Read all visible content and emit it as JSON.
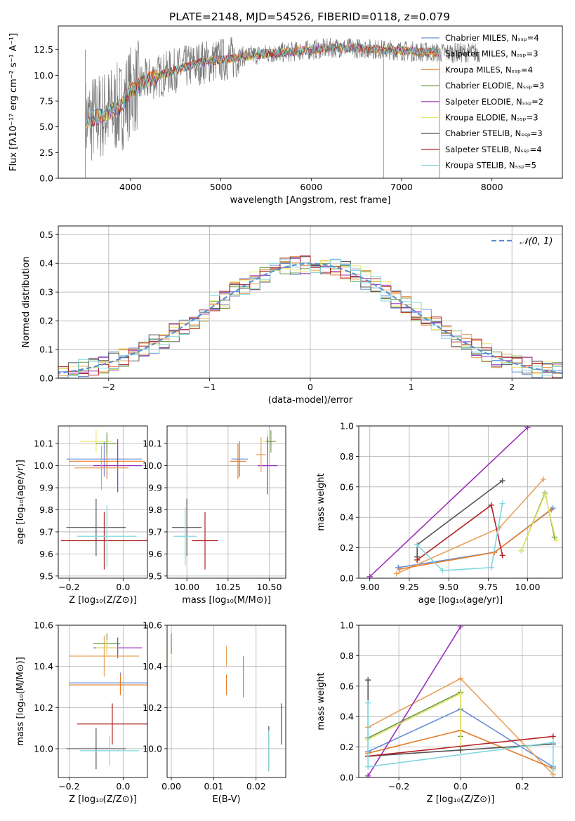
{
  "figure_title": "PLATE=2148, MJD=54526, FIBERID=0118, z=0.079",
  "series_styles": [
    {
      "name": "Chabrier MILES",
      "nssp": "4",
      "color": "#6a8fd8"
    },
    {
      "name": "Salpeter MILES",
      "nssp": "3",
      "color": "#e8a15a"
    },
    {
      "name": "Kroupa MILES",
      "nssp": "4",
      "color": "#e57d2a"
    },
    {
      "name": "Chabrier ELODIE",
      "nssp": "3",
      "color": "#6a9a4a"
    },
    {
      "name": "Salpeter ELODIE",
      "nssp": "2",
      "color": "#9b30b8"
    },
    {
      "name": "Kroupa ELODIE",
      "nssp": "3",
      "color": "#e8e86a"
    },
    {
      "name": "Chabrier STELIB",
      "nssp": "3",
      "color": "#555555"
    },
    {
      "name": "Salpeter STELIB",
      "nssp": "4",
      "color": "#b22222"
    },
    {
      "name": "Kroupa STELIB",
      "nssp": "5",
      "color": "#7fd8e0"
    }
  ],
  "chart_data": [
    {
      "id": "spectrum",
      "type": "line",
      "xlabel": "wavelength [Angstrom, rest frame]",
      "ylabel": "Flux [fλ10⁻¹⁷ erg cm⁻² s⁻¹ A⁻¹]",
      "xlim": [
        3200,
        8780
      ],
      "ylim": [
        0,
        14.8
      ],
      "xticks": [
        "4000",
        "5000",
        "6000",
        "7000",
        "8000"
      ],
      "yticks": [
        "0.0",
        "2.5",
        "5.0",
        "7.5",
        "10.0",
        "12.5"
      ],
      "legend": "right",
      "legend_labels": [
        "Chabrier MILES, Nₛₛₚ=4",
        "Salpeter MILES, Nₛₛₚ=3",
        "Kroupa MILES, Nₛₛₚ=4",
        "Chabrier ELODIE, Nₛₛₚ=3",
        "Salpeter ELODIE, Nₛₛₚ=2",
        "Kroupa ELODIE, Nₛₛₚ=3",
        "Chabrier STELIB, Nₛₛₚ=3",
        "Salpeter STELIB, Nₛₛₚ=4",
        "Kroupa STELIB, Nₛₛₚ=5"
      ],
      "continuum": {
        "x": [
          3500,
          3700,
          3900,
          4000,
          4200,
          4500,
          4800,
          5000,
          5200,
          5500,
          5800,
          6000,
          6300,
          6600,
          7000,
          7400
        ],
        "y": [
          5.5,
          6.2,
          7.0,
          8.5,
          9.6,
          10.5,
          11.3,
          11.5,
          11.8,
          12.1,
          12.3,
          12.5,
          12.7,
          12.6,
          12.4,
          12.2
        ]
      },
      "data_range": [
        3500,
        7420
      ]
    },
    {
      "id": "residuals",
      "type": "bar",
      "xlabel": "(data-model)/error",
      "ylabel": "Normed distribution",
      "xlim": [
        -2.5,
        2.5
      ],
      "ylim": [
        0,
        0.53
      ],
      "xticks": [
        "−2",
        "−1",
        "0",
        "1",
        "2"
      ],
      "yticks": [
        "0.0",
        "0.1",
        "0.2",
        "0.3",
        "0.4",
        "0.5"
      ],
      "legend": "top-right",
      "reference_curve": {
        "name": "𝒩(0, 1)",
        "mean": 0,
        "sigma": 1
      }
    },
    {
      "id": "age_vs_Z",
      "type": "scatter",
      "xlabel": "Z [log₁₀(Z/Z⊙)]",
      "ylabel": "age  [log₁₀(age/yr)]",
      "xlim": [
        -0.24,
        0.09
      ],
      "ylim": [
        9.49,
        10.18
      ],
      "xticks": [
        "−0.2",
        "0.0"
      ],
      "yticks": [
        "9.5",
        "9.6",
        "9.7",
        "9.8",
        "9.9",
        "10.0",
        "10.1"
      ],
      "points": [
        {
          "x": -0.07,
          "y": 10.03,
          "xerr": 0.14,
          "yerr": 0.08,
          "c": 0
        },
        {
          "x": -0.06,
          "y": 10.02,
          "xerr": 0.14,
          "yerr": 0.08,
          "c": 2
        },
        {
          "x": -0.1,
          "y": 10.11,
          "xerr": 0.06,
          "yerr": 0.05,
          "c": 5
        },
        {
          "x": -0.02,
          "y": 10.0,
          "xerr": 0.09,
          "yerr": 0.12,
          "c": 4
        },
        {
          "x": -0.08,
          "y": 9.99,
          "xerr": 0.1,
          "yerr": 0.1,
          "c": 1
        },
        {
          "x": -0.06,
          "y": 10.1,
          "xerr": 0.04,
          "yerr": 0.05,
          "c": 3
        },
        {
          "x": -0.1,
          "y": 9.72,
          "xerr": 0.11,
          "yerr": 0.13,
          "c": 6
        },
        {
          "x": -0.07,
          "y": 9.66,
          "xerr": 0.16,
          "yerr": 0.13,
          "c": 7
        },
        {
          "x": -0.06,
          "y": 9.68,
          "xerr": 0.11,
          "yerr": 0.14,
          "c": 8
        }
      ]
    },
    {
      "id": "age_vs_mass",
      "type": "scatter",
      "xlabel": "mass [log₁₀(M/M⊙)]",
      "ylabel": "",
      "xlim": [
        9.88,
        10.6
      ],
      "ylim": [
        9.49,
        10.18
      ],
      "xticks": [
        "10.00",
        "10.25",
        "10.50"
      ],
      "yticks": [
        "9.5",
        "9.6",
        "9.7",
        "9.8",
        "9.9",
        "10.0",
        "10.1"
      ],
      "points": [
        {
          "x": 10.32,
          "y": 10.03,
          "xerr": 0.05,
          "yerr": 0.08,
          "c": 0
        },
        {
          "x": 10.31,
          "y": 10.02,
          "xerr": 0.05,
          "yerr": 0.08,
          "c": 2
        },
        {
          "x": 10.49,
          "y": 10.11,
          "xerr": 0.03,
          "yerr": 0.05,
          "c": 5
        },
        {
          "x": 10.49,
          "y": 10.0,
          "xerr": 0.06,
          "yerr": 0.13,
          "c": 4
        },
        {
          "x": 10.45,
          "y": 10.05,
          "xerr": 0.03,
          "yerr": 0.08,
          "c": 1
        },
        {
          "x": 10.51,
          "y": 10.11,
          "xerr": 0.03,
          "yerr": 0.05,
          "c": 3
        },
        {
          "x": 10.0,
          "y": 9.72,
          "xerr": 0.09,
          "yerr": 0.13,
          "c": 6
        },
        {
          "x": 10.11,
          "y": 9.66,
          "xerr": 0.08,
          "yerr": 0.13,
          "c": 7
        },
        {
          "x": 9.99,
          "y": 9.68,
          "xerr": 0.07,
          "yerr": 0.13,
          "c": 8
        }
      ]
    },
    {
      "id": "massweight_vs_age",
      "type": "line",
      "xlabel": "age  [log₁₀(age/yr)]",
      "ylabel": "mass weight",
      "xlim": [
        8.93,
        10.22
      ],
      "ylim": [
        0,
        1.0
      ],
      "xticks": [
        "9.00",
        "9.25",
        "9.50",
        "9.75",
        "10.00"
      ],
      "yticks": [
        "0.0",
        "0.2",
        "0.4",
        "0.6",
        "0.8",
        "1.0"
      ],
      "series": [
        {
          "c": 0,
          "x": [
            9.18,
            9.79,
            10.16
          ],
          "y": [
            0.07,
            0.17,
            0.46
          ]
        },
        {
          "c": 1,
          "x": [
            9.17,
            9.82,
            10.1
          ],
          "y": [
            0.03,
            0.33,
            0.65
          ]
        },
        {
          "c": 2,
          "x": [
            9.19,
            9.79,
            10.15
          ],
          "y": [
            0.06,
            0.17,
            0.45
          ]
        },
        {
          "c": 3,
          "x": [
            9.96,
            10.11,
            10.17
          ],
          "y": [
            0.18,
            0.56,
            0.27
          ]
        },
        {
          "c": 4,
          "x": [
            9.0,
            10.0
          ],
          "y": [
            0.01,
            0.99
          ]
        },
        {
          "c": 5,
          "x": [
            9.96,
            10.11,
            10.18
          ],
          "y": [
            0.18,
            0.55,
            0.25
          ]
        },
        {
          "c": 6,
          "x": [
            9.3,
            9.3,
            9.84
          ],
          "y": [
            0.14,
            0.22,
            0.64
          ]
        },
        {
          "c": 7,
          "x": [
            9.3,
            9.77,
            9.84
          ],
          "y": [
            0.12,
            0.48,
            0.15
          ]
        },
        {
          "c": 8,
          "x": [
            9.3,
            9.46,
            9.77,
            9.84
          ],
          "y": [
            0.22,
            0.05,
            0.07,
            0.49
          ]
        }
      ]
    },
    {
      "id": "mass_vs_Z",
      "type": "scatter",
      "xlabel": "Z [log₁₀(Z/Z⊙)]",
      "ylabel": "mass [log₁₀(M/M⊙)]",
      "xlim": [
        -0.24,
        0.09
      ],
      "ylim": [
        9.86,
        10.6
      ],
      "xticks": [
        "−0.2",
        "0.0"
      ],
      "yticks": [
        "10.0",
        "10.2",
        "10.4",
        "10.6"
      ],
      "points": [
        {
          "x": -0.01,
          "y": 10.32,
          "xerr": 0.19,
          "yerr": 0.05,
          "c": 0
        },
        {
          "x": -0.01,
          "y": 10.31,
          "xerr": 0.19,
          "yerr": 0.05,
          "c": 2
        },
        {
          "x": -0.06,
          "y": 10.51,
          "xerr": 0.05,
          "yerr": 0.05,
          "c": 3
        },
        {
          "x": -0.02,
          "y": 10.49,
          "xerr": 0.09,
          "yerr": 0.05,
          "c": 4
        },
        {
          "x": -0.07,
          "y": 10.45,
          "xerr": 0.13,
          "yerr": 0.1,
          "c": 1
        },
        {
          "x": -0.06,
          "y": 10.49,
          "xerr": 0.04,
          "yerr": 0.04,
          "c": 5
        },
        {
          "x": -0.1,
          "y": 10.0,
          "xerr": 0.11,
          "yerr": 0.1,
          "c": 6
        },
        {
          "x": -0.04,
          "y": 10.12,
          "xerr": 0.13,
          "yerr": 0.1,
          "c": 7
        },
        {
          "x": -0.05,
          "y": 9.99,
          "xerr": 0.11,
          "yerr": 0.07,
          "c": 8
        }
      ]
    },
    {
      "id": "mass_vs_ebv",
      "type": "scatter",
      "xlabel": "E(B-V)",
      "ylabel": "",
      "xlim": [
        -0.001,
        0.027
      ],
      "ylim": [
        9.86,
        10.6
      ],
      "xticks": [
        "0.00",
        "0.01",
        "0.02"
      ],
      "yticks": [
        "10.0",
        "10.2",
        "10.4",
        "10.6"
      ],
      "points": [
        {
          "x": 0.017,
          "y": 10.35,
          "yerr": 0.1,
          "c": 0
        },
        {
          "x": 0.013,
          "y": 10.31,
          "yerr": 0.05,
          "c": 2
        },
        {
          "x": 0.0,
          "y": 10.49,
          "yerr": 0.07,
          "c": 5
        },
        {
          "x": 0.013,
          "y": 10.45,
          "yerr": 0.05,
          "c": 1
        },
        {
          "x": 0.0,
          "y": 10.51,
          "yerr": 0.05,
          "c": 3
        },
        {
          "x": 0.023,
          "y": 10.0,
          "yerr": 0.11,
          "c": 6
        },
        {
          "x": 0.026,
          "y": 10.12,
          "yerr": 0.1,
          "c": 7
        },
        {
          "x": 0.023,
          "y": 9.99,
          "yerr": 0.1,
          "c": 8
        }
      ]
    },
    {
      "id": "massweight_vs_Z",
      "type": "line",
      "xlabel": "Z [log₁₀(Z/Z⊙)]",
      "ylabel": "mass weight",
      "xlim": [
        -0.33,
        0.33
      ],
      "ylim": [
        0,
        1.0
      ],
      "xticks": [
        "−0.2",
        "0.0",
        "0.2"
      ],
      "yticks": [
        "0.0",
        "0.2",
        "0.4",
        "0.6",
        "0.8",
        "1.0"
      ],
      "series": [
        {
          "c": 0,
          "x": [
            -0.3,
            0.0,
            0.3
          ],
          "y": [
            0.17,
            0.45,
            0.07
          ]
        },
        {
          "c": 1,
          "x": [
            -0.3,
            0.0,
            0.3
          ],
          "y": [
            0.33,
            0.65,
            0.02
          ]
        },
        {
          "c": 2,
          "x": [
            -0.3,
            0.0,
            0.3
          ],
          "y": [
            0.16,
            0.31,
            0.06
          ]
        },
        {
          "c": 3,
          "x": [
            -0.3,
            0.0,
            0.0
          ],
          "y": [
            0.26,
            0.56,
            0.27
          ]
        },
        {
          "c": 4,
          "x": [
            -0.3,
            0.0
          ],
          "y": [
            0.01,
            0.99
          ]
        },
        {
          "c": 5,
          "x": [
            -0.3,
            0.0,
            0.0
          ],
          "y": [
            0.25,
            0.55,
            0.18
          ]
        },
        {
          "c": 6,
          "x": [
            -0.3,
            -0.3,
            0.0,
            0.3
          ],
          "y": [
            0.64,
            0.14,
            0.18,
            0.22
          ]
        },
        {
          "c": 7,
          "x": [
            -0.3,
            0.3
          ],
          "y": [
            0.14,
            0.27
          ]
        },
        {
          "c": 8,
          "x": [
            -0.3,
            -0.3,
            0.3,
            0.3
          ],
          "y": [
            0.49,
            0.07,
            0.23,
            0.05
          ]
        }
      ]
    }
  ]
}
